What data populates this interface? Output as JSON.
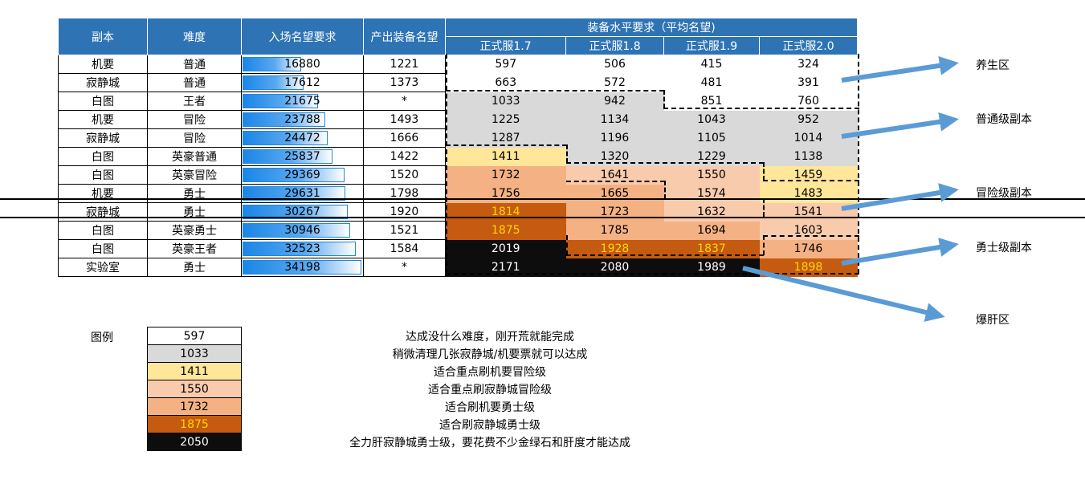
{
  "headers": {
    "dungeon": "副本",
    "difficulty": "难度",
    "entry_rep": "入场名望要求",
    "output_rep": "产出装备名望",
    "gear_req": "装备水平要求（平均名望)",
    "versions": [
      "正式服1.7",
      "正式服1.8",
      "正式服1.9",
      "正式服2.0"
    ]
  },
  "rows": [
    {
      "dungeon": "机要",
      "difficulty": "普通",
      "entry": "16880",
      "entry_value": 16880,
      "output": "1221",
      "reqs": [
        "597",
        "506",
        "415",
        "324"
      ],
      "colors": [
        "white",
        "white",
        "white",
        "white"
      ]
    },
    {
      "dungeon": "寂静城",
      "difficulty": "普通",
      "entry": "17612",
      "entry_value": 17612,
      "output": "1373",
      "reqs": [
        "663",
        "572",
        "481",
        "391"
      ],
      "colors": [
        "white",
        "white",
        "white",
        "white"
      ]
    },
    {
      "dungeon": "白图",
      "difficulty": "王者",
      "entry": "21675",
      "entry_value": 21675,
      "output": "*",
      "reqs": [
        "1033",
        "942",
        "851",
        "760"
      ],
      "colors": [
        "gray",
        "gray",
        "white",
        "white"
      ]
    },
    {
      "dungeon": "机要",
      "difficulty": "冒险",
      "entry": "23788",
      "entry_value": 23788,
      "output": "1493",
      "reqs": [
        "1225",
        "1134",
        "1043",
        "952"
      ],
      "colors": [
        "gray",
        "gray",
        "gray",
        "gray"
      ]
    },
    {
      "dungeon": "寂静城",
      "difficulty": "冒险",
      "entry": "24472",
      "entry_value": 24472,
      "output": "1666",
      "reqs": [
        "1287",
        "1196",
        "1105",
        "1014"
      ],
      "colors": [
        "gray",
        "gray",
        "gray",
        "gray"
      ]
    },
    {
      "dungeon": "白图",
      "difficulty": "英豪普通",
      "entry": "25837",
      "entry_value": 25837,
      "output": "1422",
      "reqs": [
        "1411",
        "1320",
        "1229",
        "1138"
      ],
      "colors": [
        "yellow",
        "gray",
        "gray",
        "gray"
      ]
    },
    {
      "dungeon": "白图",
      "difficulty": "英豪冒险",
      "entry": "29369",
      "entry_value": 29369,
      "output": "1520",
      "reqs": [
        "1732",
        "1641",
        "1550",
        "1459"
      ],
      "colors": [
        "salmon",
        "peach",
        "peach",
        "yellow"
      ]
    },
    {
      "dungeon": "机要",
      "difficulty": "勇士",
      "entry": "29631",
      "entry_value": 29631,
      "output": "1798",
      "reqs": [
        "1756",
        "1665",
        "1574",
        "1483"
      ],
      "colors": [
        "salmon",
        "salmon",
        "peach",
        "yellow"
      ]
    },
    {
      "dungeon": "寂静城",
      "difficulty": "勇士",
      "entry": "30267",
      "entry_value": 30267,
      "output": "1920",
      "reqs": [
        "1814",
        "1723",
        "1632",
        "1541"
      ],
      "colors": [
        "orange",
        "salmon",
        "peach",
        "peach"
      ]
    },
    {
      "dungeon": "白图",
      "difficulty": "英豪勇士",
      "entry": "30946",
      "entry_value": 30946,
      "output": "1521",
      "reqs": [
        "1875",
        "1785",
        "1694",
        "1603"
      ],
      "colors": [
        "orange",
        "salmon",
        "salmon",
        "peach"
      ]
    },
    {
      "dungeon": "白图",
      "difficulty": "英豪王者",
      "entry": "32523",
      "entry_value": 32523,
      "output": "1584",
      "reqs": [
        "2019",
        "1928",
        "1837",
        "1746"
      ],
      "colors": [
        "black",
        "orange",
        "orange",
        "salmon"
      ]
    },
    {
      "dungeon": "实验室",
      "difficulty": "勇士",
      "entry": "34198",
      "entry_value": 34198,
      "output": "*",
      "reqs": [
        "2171",
        "2080",
        "1989",
        "1898"
      ],
      "colors": [
        "black",
        "black",
        "black",
        "orange"
      ]
    }
  ],
  "zones": {
    "z1": "养生区",
    "z2": "普通级副本",
    "z3": "冒险级副本",
    "z4": "勇士级副本",
    "z5": "爆肝区"
  },
  "legend": {
    "title": "图例",
    "items": [
      {
        "value": "597",
        "color": "white",
        "desc": "达成没什么难度，刚开荒就能完成"
      },
      {
        "value": "1033",
        "color": "gray",
        "desc": "稍微清理几张寂静城/机要票就可以达成"
      },
      {
        "value": "1411",
        "color": "yellow",
        "desc": "适合重点刷机要冒险级"
      },
      {
        "value": "1550",
        "color": "peach",
        "desc": "适合重点刷寂静城冒险级"
      },
      {
        "value": "1732",
        "color": "salmon",
        "desc": "适合刷机要勇士级"
      },
      {
        "value": "1875",
        "color": "orange",
        "desc": "适合刷寂静城勇士级"
      },
      {
        "value": "2050",
        "color": "black",
        "desc": "全力肝寂静城勇士级，要花费不少金绿石和肝度才能达成"
      }
    ]
  },
  "colors": {
    "header_blue": "#2e74b5",
    "arrow_blue": "#5b9bd5",
    "white": "#ffffff",
    "gray": "#d9d9d9",
    "yellow": "#ffe699",
    "peach": "#f8cbad",
    "salmon": "#f4b183",
    "orange": "#c55a11",
    "black": "#0d0d0d"
  }
}
